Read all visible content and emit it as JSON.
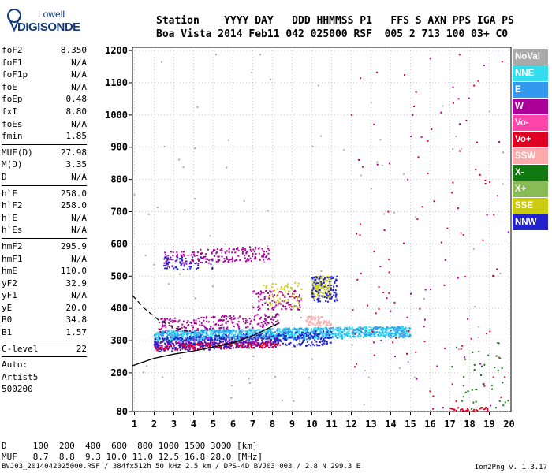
{
  "logo": {
    "line1": "Lowell",
    "line2": "DIGISONDE"
  },
  "header": {
    "line1": "Station    YYYY DAY   DDD HHMMSS P1   FFS S AXN PPS IGA PS",
    "line2": "Boa Vista 2014 Feb11 042 025000 RSF  005 2 713 100 03+ C0"
  },
  "params": {
    "group1": [
      {
        "key": "foF2",
        "value": "8.350"
      },
      {
        "key": "foF1",
        "value": "N/A"
      },
      {
        "key": "foF1p",
        "value": "N/A"
      },
      {
        "key": "foE",
        "value": "N/A"
      },
      {
        "key": "foEp",
        "value": "0.48"
      },
      {
        "key": "fxI",
        "value": "8.80"
      },
      {
        "key": "foEs",
        "value": "N/A"
      },
      {
        "key": "fmin",
        "value": "1.85"
      }
    ],
    "group2": [
      {
        "key": "MUF(D)",
        "value": "27.98"
      },
      {
        "key": "M(D)",
        "value": "3.35"
      },
      {
        "key": "D",
        "value": "N/A"
      }
    ],
    "group3": [
      {
        "key": "h`F",
        "value": "258.0"
      },
      {
        "key": "h`F2",
        "value": "258.0"
      },
      {
        "key": "h`E",
        "value": "N/A"
      },
      {
        "key": "h`Es",
        "value": "N/A"
      }
    ],
    "group4": [
      {
        "key": "hmF2",
        "value": "295.9"
      },
      {
        "key": "hmF1",
        "value": "N/A"
      },
      {
        "key": "hmE",
        "value": "110.0"
      },
      {
        "key": "yF2",
        "value": "32.9"
      },
      {
        "key": "yF1",
        "value": "N/A"
      },
      {
        "key": "yE",
        "value": "20.0"
      },
      {
        "key": "B0",
        "value": "34.8"
      },
      {
        "key": "B1",
        "value": "1.57"
      }
    ],
    "clevel": {
      "key": "C-level",
      "value": "22"
    },
    "auto": [
      "Auto:",
      "Artist5",
      "500200"
    ]
  },
  "footer": {
    "d_line": "D     100  200  400  600  800 1000 1500 3000 [km]",
    "muf_line": "MUF   8.7  8.8  9.3 10.0 11.0 12.5 16.8 28.0 [MHz]",
    "file_line": "BVJ03_2014042025000.RSF / 384fx512h 50 kHz 2.5 km / DPS-4D BVJ03 003 / 2.8 N 299.3 E",
    "version": "Ion2Png v. 1.3.17"
  },
  "legend": [
    {
      "label": "NoVal",
      "color": "#aaaaaa"
    },
    {
      "label": "NNE",
      "color": "#33ddee"
    },
    {
      "label": "E",
      "color": "#3399ee"
    },
    {
      "label": "W",
      "color": "#aa0099"
    },
    {
      "label": "Vo-",
      "color": "#ff44aa"
    },
    {
      "label": "Vo+",
      "color": "#dd0022"
    },
    {
      "label": "SSW",
      "color": "#ffaaaa"
    },
    {
      "label": "X-",
      "color": "#117711"
    },
    {
      "label": "X+",
      "color": "#88bb55"
    },
    {
      "label": "SSE",
      "color": "#cccc11"
    },
    {
      "label": "NNW",
      "color": "#2222cc"
    }
  ],
  "chart_data": {
    "type": "scatter",
    "xlim": [
      0.9,
      20.1
    ],
    "ylim": [
      80,
      1210
    ],
    "x_ticks": [
      1,
      2,
      3,
      4,
      5,
      6,
      7,
      8,
      9,
      10,
      11,
      12,
      13,
      14,
      15,
      16,
      17,
      18,
      19,
      20
    ],
    "y_ticks": [
      80,
      200,
      300,
      400,
      500,
      600,
      700,
      800,
      900,
      1000,
      1100,
      1200
    ],
    "grid": true,
    "profile_curve": {
      "x": [
        0.9,
        2,
        3,
        4,
        5,
        6,
        7,
        8.35
      ],
      "y": [
        222,
        245,
        258,
        268,
        280,
        293,
        315,
        355
      ]
    },
    "dashed_curve": {
      "x": [
        0.9,
        1.5,
        2.2,
        3.0,
        4.0
      ],
      "y": [
        440,
        400,
        365,
        340,
        325
      ]
    },
    "clusters": [
      {
        "series": "W",
        "x": [
          2,
          8.4
        ],
        "y": [
          270,
          320
        ],
        "n": 360
      },
      {
        "series": "NNE",
        "x": [
          2,
          15
        ],
        "y": [
          300,
          345
        ],
        "n": 900
      },
      {
        "series": "E",
        "x": [
          2,
          15
        ],
        "y": [
          295,
          345
        ],
        "n": 500
      },
      {
        "series": "NNW",
        "x": [
          2,
          11
        ],
        "y": [
          265,
          330
        ],
        "n": 450
      },
      {
        "series": "Vo+",
        "x": [
          2,
          8.4
        ],
        "y": [
          270,
          295
        ],
        "n": 120
      },
      {
        "series": "W",
        "x": [
          2.2,
          8.4
        ],
        "y": [
          325,
          385
        ],
        "n": 200
      },
      {
        "series": "W",
        "x": [
          2.5,
          7.9
        ],
        "y": [
          530,
          595
        ],
        "n": 200
      },
      {
        "series": "NNW",
        "x": [
          2.5,
          5
        ],
        "y": [
          520,
          560
        ],
        "n": 60
      },
      {
        "series": "SSE",
        "x": [
          10,
          11
        ],
        "y": [
          430,
          500
        ],
        "n": 120
      },
      {
        "series": "NNW",
        "x": [
          10,
          11.3
        ],
        "y": [
          420,
          500
        ],
        "n": 100
      },
      {
        "series": "W",
        "x": [
          7,
          9.5
        ],
        "y": [
          395,
          455
        ],
        "n": 90
      },
      {
        "series": "SSW",
        "x": [
          9.7,
          11
        ],
        "y": [
          345,
          375
        ],
        "n": 60
      },
      {
        "series": "SSE",
        "x": [
          7.5,
          9.5
        ],
        "y": [
          400,
          480
        ],
        "n": 60
      },
      {
        "series": "NoVal",
        "x": [
          1,
          20
        ],
        "y": [
          80,
          1200
        ],
        "n": 90
      },
      {
        "series": "Vo+",
        "x": [
          12,
          20
        ],
        "y": [
          80,
          1200
        ],
        "n": 90
      },
      {
        "series": "W",
        "x": [
          13,
          20
        ],
        "y": [
          80,
          1200
        ],
        "n": 40
      },
      {
        "series": "X-",
        "x": [
          17,
          20
        ],
        "y": [
          80,
          300
        ],
        "n": 40
      },
      {
        "series": "Vo+",
        "x": [
          17,
          19
        ],
        "y": [
          80,
          92
        ],
        "n": 30
      }
    ]
  }
}
